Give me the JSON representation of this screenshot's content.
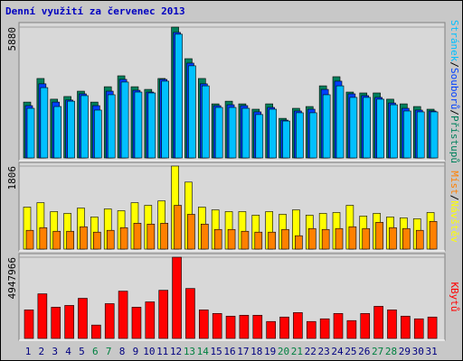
{
  "chart_data": [
    {
      "type": "bar",
      "title": "Denní využití za červenec 2013",
      "series": [
        {
          "name": "Přístupů",
          "color": "#00805c",
          "values": [
            2510,
            3570,
            2640,
            2760,
            3000,
            2510,
            3200,
            3690,
            3200,
            3080,
            3570,
            5880,
            4460,
            3570,
            2430,
            2550,
            2430,
            2190,
            2430,
            1780,
            2230,
            2310,
            3240,
            3650,
            2960,
            2920,
            2920,
            2640,
            2430,
            2310,
            2190
          ]
        },
        {
          "name": "Souborů",
          "color": "#0040ff",
          "values": [
            2350,
            3330,
            2510,
            2600,
            2880,
            2350,
            3000,
            3530,
            3040,
            2960,
            3530,
            5640,
            4260,
            3330,
            2350,
            2390,
            2350,
            2070,
            2270,
            1700,
            2110,
            2190,
            3080,
            3450,
            2880,
            2800,
            2720,
            2470,
            2230,
            2150,
            2110
          ]
        },
        {
          "name": "Stránek",
          "color": "#00c0ff",
          "values": [
            2230,
            3160,
            2310,
            2550,
            2800,
            2150,
            2840,
            3410,
            2960,
            2920,
            3450,
            5560,
            4140,
            3240,
            2270,
            2270,
            2230,
            1950,
            2190,
            1660,
            2030,
            2030,
            2840,
            3240,
            2720,
            2720,
            2640,
            2390,
            2110,
            2070,
            2070
          ]
        }
      ],
      "ylim": [
        0,
        5880
      ],
      "yticks": [
        5880
      ],
      "legend_separator": "/"
    },
    {
      "type": "bar",
      "series": [
        {
          "name": "Návštěv",
          "color": "#ffff00",
          "values": [
            913,
            1010,
            816,
            777,
            893,
            699,
            874,
            835,
            1010,
            952,
            1049,
            1806,
            1457,
            913,
            854,
            816,
            816,
            738,
            816,
            757,
            854,
            738,
            777,
            796,
            952,
            719,
            777,
            699,
            680,
            660,
            796
          ]
        },
        {
          "name": "Míst",
          "color": "#ff8000",
          "values": [
            408,
            466,
            388,
            388,
            486,
            369,
            408,
            466,
            563,
            544,
            563,
            952,
            757,
            544,
            427,
            427,
            388,
            369,
            369,
            427,
            291,
            447,
            427,
            447,
            486,
            447,
            583,
            466,
            447,
            408,
            602
          ]
        }
      ],
      "ylim": [
        0,
        1806
      ],
      "yticks": [
        1806
      ],
      "legend_separator": "/"
    },
    {
      "type": "bar",
      "categories": [
        "1",
        "2",
        "3",
        "4",
        "5",
        "6",
        "7",
        "8",
        "9",
        "10",
        "11",
        "12",
        "13",
        "14",
        "15",
        "16",
        "17",
        "18",
        "19",
        "20",
        "21",
        "22",
        "23",
        "24",
        "25",
        "26",
        "27",
        "28",
        "29",
        "30",
        "31"
      ],
      "category_colors": [
        "#000080",
        "#000080",
        "#000080",
        "#000080",
        "#000080",
        "#008040",
        "#008040",
        "#000080",
        "#000080",
        "#000080",
        "#000080",
        "#000080",
        "#008040",
        "#008040",
        "#000080",
        "#000080",
        "#000080",
        "#000080",
        "#000080",
        "#008040",
        "#008040",
        "#000080",
        "#000080",
        "#000080",
        "#000080",
        "#000080",
        "#008040",
        "#008040",
        "#000080",
        "#000080",
        "#000080"
      ],
      "series": [
        {
          "name": "KBytů",
          "color": "#ff0000",
          "values": [
            1739936,
            2718650,
            1903055,
            2011801,
            2446785,
            815595,
            2120547,
            2881769,
            1903055,
            2229293,
            2936142,
            4947966,
            3044888,
            1739936,
            1522444,
            1359325,
            1413698,
            1413698,
            1033087,
            1304952,
            1576817,
            1033087,
            1196206,
            1522444,
            1087460,
            1522444,
            1957428,
            1739936,
            1359325,
            1196206,
            1304952
          ]
        }
      ],
      "ylim": [
        0,
        4947966
      ],
      "yticks": [
        4947966
      ]
    }
  ]
}
